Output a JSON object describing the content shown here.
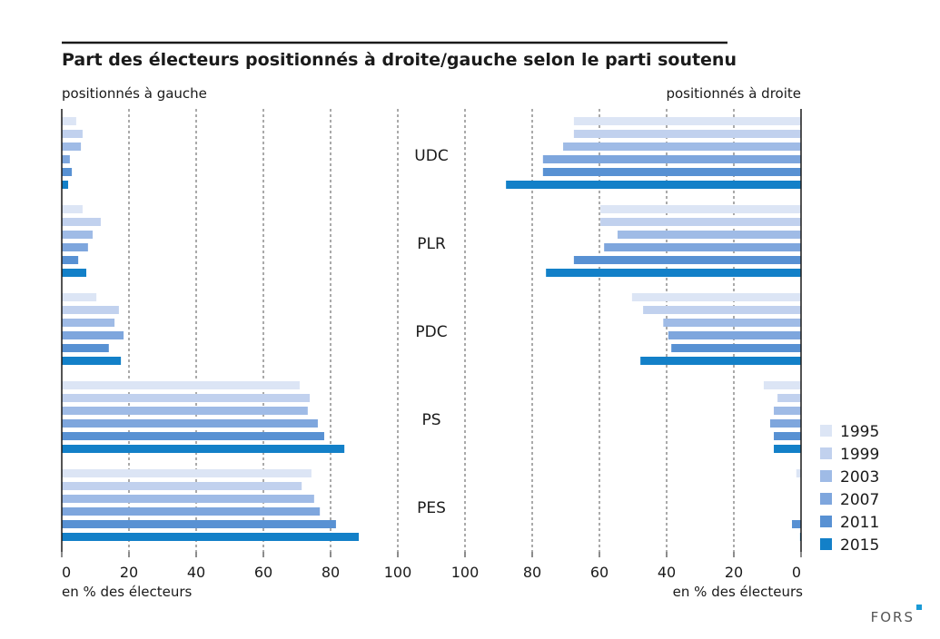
{
  "chart_data": {
    "type": "bar",
    "title": "Part des électeurs positionnés à droite/gauche selon le parti soutenu",
    "left_panel_label": "positionnés à gauche",
    "right_panel_label": "positionnés à droite",
    "xlabel_left": "en % des électeurs",
    "xlabel_right": "en % des électeurs",
    "xlim": [
      0,
      100
    ],
    "left_ticks": [
      "0",
      "20",
      "40",
      "60",
      "80",
      "100"
    ],
    "right_ticks": [
      "100",
      "80",
      "60",
      "40",
      "20",
      "0"
    ],
    "tick_values": [
      0,
      20,
      40,
      60,
      80,
      100
    ],
    "grid": true,
    "legend_position": "bottom-right",
    "categories": [
      "UDC",
      "PLR",
      "PDC",
      "PS",
      "PES"
    ],
    "series": [
      {
        "name": "1995",
        "color": "#dce5f5",
        "left": [
          4.3,
          6.2,
          10.3,
          70.8,
          74.3
        ],
        "right": [
          67.6,
          59.7,
          50.3,
          11.1,
          1.4
        ]
      },
      {
        "name": "1999",
        "color": "#c1d1ee",
        "left": [
          6.2,
          11.6,
          17.0,
          73.8,
          71.4
        ],
        "right": [
          67.6,
          59.7,
          47.0,
          7.0,
          0.0
        ]
      },
      {
        "name": "2003",
        "color": "#9fbbe6",
        "left": [
          5.7,
          9.2,
          15.7,
          73.2,
          75.1
        ],
        "right": [
          70.8,
          54.6,
          41.0,
          8.1,
          0.0
        ]
      },
      {
        "name": "2007",
        "color": "#7ea6dd",
        "left": [
          2.4,
          7.8,
          18.4,
          76.2,
          76.8
        ],
        "right": [
          76.8,
          58.6,
          39.5,
          9.2,
          0.0
        ]
      },
      {
        "name": "2011",
        "color": "#5891d3",
        "left": [
          3.0,
          4.9,
          14.0,
          78.1,
          81.6
        ],
        "right": [
          76.8,
          67.6,
          38.6,
          8.1,
          2.7
        ]
      },
      {
        "name": "2015",
        "color": "#1380c8",
        "left": [
          1.9,
          7.3,
          17.6,
          84.1,
          88.4
        ],
        "right": [
          87.8,
          75.9,
          47.8,
          8.1,
          0.3
        ]
      }
    ]
  },
  "logo": "FORS"
}
